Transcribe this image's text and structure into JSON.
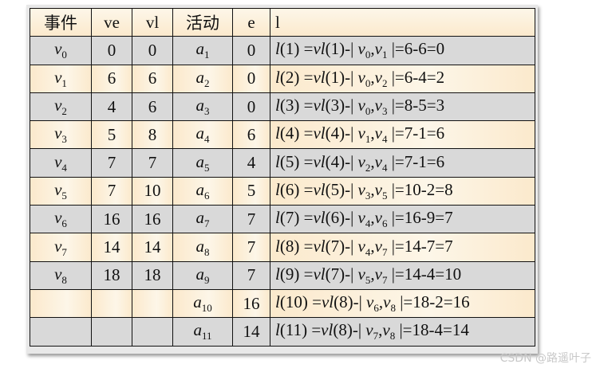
{
  "headers": [
    "事件",
    "ve",
    "vl",
    "活动",
    "e",
    "l"
  ],
  "rows": [
    {
      "ev": "v",
      "evs": "0",
      "ve": "0",
      "vl": "0",
      "act": "a",
      "acts": "1",
      "e": "0",
      "k": "1",
      "m": "1",
      "i": "0",
      "j": "1",
      "calc": "6-6=0"
    },
    {
      "ev": "v",
      "evs": "1",
      "ve": "6",
      "vl": "6",
      "act": "a",
      "acts": "2",
      "e": "0",
      "k": "2",
      "m": "1",
      "i": "0",
      "j": "2",
      "calc": "6-4=2"
    },
    {
      "ev": "v",
      "evs": "2",
      "ve": "4",
      "vl": "6",
      "act": "a",
      "acts": "3",
      "e": "0",
      "k": "3",
      "m": "3",
      "i": "0",
      "j": "3",
      "calc": "8-5=3"
    },
    {
      "ev": "v",
      "evs": "3",
      "ve": "5",
      "vl": "8",
      "act": "a",
      "acts": "4",
      "e": "6",
      "k": "4",
      "m": "4",
      "i": "1",
      "j": "4",
      "calc": "7-1=6"
    },
    {
      "ev": "v",
      "evs": "4",
      "ve": "7",
      "vl": "7",
      "act": "a",
      "acts": "5",
      "e": "4",
      "k": "5",
      "m": "4",
      "i": "2",
      "j": "4",
      "calc": "7-1=6"
    },
    {
      "ev": "v",
      "evs": "5",
      "ve": "7",
      "vl": "10",
      "act": "a",
      "acts": "6",
      "e": "5",
      "k": "6",
      "m": "5",
      "i": "3",
      "j": "5",
      "calc": "10-2=8"
    },
    {
      "ev": "v",
      "evs": "6",
      "ve": "16",
      "vl": "16",
      "act": "a",
      "acts": "7",
      "e": "7",
      "k": "7",
      "m": "6",
      "i": "4",
      "j": "6",
      "calc": "16-9=7"
    },
    {
      "ev": "v",
      "evs": "7",
      "ve": "14",
      "vl": "14",
      "act": "a",
      "acts": "8",
      "e": "7",
      "k": "8",
      "m": "7",
      "i": "4",
      "j": "7",
      "calc": "14-7=7"
    },
    {
      "ev": "v",
      "evs": "8",
      "ve": "18",
      "vl": "18",
      "act": "a",
      "acts": "9",
      "e": "7",
      "k": "9",
      "m": "7",
      "i": "5",
      "j": "7",
      "calc": "14-4=10"
    },
    {
      "ev": "",
      "evs": "",
      "ve": "",
      "vl": "",
      "act": "a",
      "acts": "10",
      "e": "16",
      "k": "10",
      "m": "8",
      "i": "6",
      "j": "8",
      "calc": "18-2=16"
    },
    {
      "ev": "",
      "evs": "",
      "ve": "",
      "vl": "",
      "act": "a",
      "acts": "11",
      "e": "14",
      "k": "11",
      "m": "8",
      "i": "7",
      "j": "8",
      "calc": "18-4=14"
    }
  ],
  "formula": {
    "l": "l",
    "open": "(",
    "close_eq": ") =",
    "vl": "vl",
    "minus_bar": ")-| ",
    "v": "v",
    "comma": ",",
    "bar_eq": " |="
  },
  "watermark": "CSDN @路遥叶子"
}
